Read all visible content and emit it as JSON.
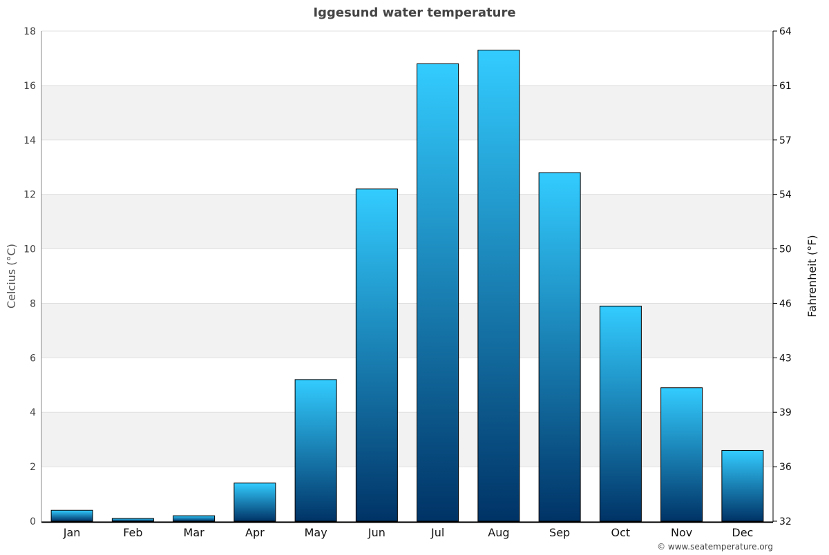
{
  "chart_data": {
    "type": "bar",
    "title": "Iggesund water temperature",
    "ylabel": "Celcius (°C)",
    "y2label": "Fahrenheit (°F)",
    "categories": [
      "Jan",
      "Feb",
      "Mar",
      "Apr",
      "May",
      "Jun",
      "Jul",
      "Aug",
      "Sep",
      "Oct",
      "Nov",
      "Dec"
    ],
    "values": [
      0.4,
      0.1,
      0.2,
      1.4,
      5.2,
      12.2,
      16.8,
      17.3,
      12.8,
      7.9,
      4.9,
      2.6
    ],
    "ylim": [
      0,
      18
    ],
    "yticks": [
      0,
      2,
      4,
      6,
      8,
      10,
      12,
      14,
      16,
      18
    ],
    "y2ticks": [
      "32",
      "36",
      "39",
      "43",
      "46",
      "50",
      "54",
      "57",
      "61",
      "64"
    ],
    "grid": "alternating horizontal bands",
    "colors": {
      "bar_top": "#33ccff",
      "bar_bottom": "#003366",
      "band": "#f2f2f2"
    }
  },
  "credit": "© www.seatemperature.org"
}
